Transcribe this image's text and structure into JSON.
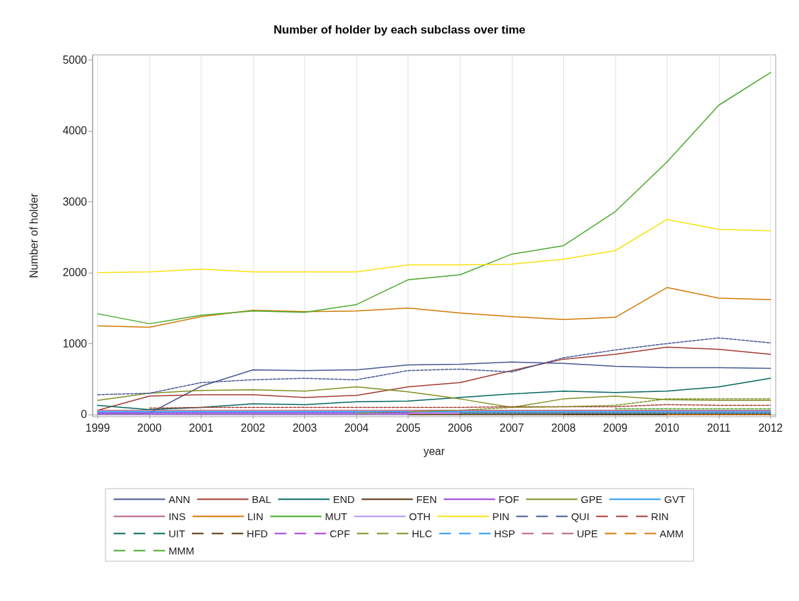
{
  "chart_data": {
    "type": "line",
    "title": "Number of holder by each subclass over time",
    "xlabel": "year",
    "ylabel": "Number of holder",
    "x": [
      1999,
      2000,
      2001,
      2002,
      2003,
      2004,
      2005,
      2006,
      2007,
      2008,
      2009,
      2010,
      2011,
      2012
    ],
    "xlim": [
      1998.9,
      2012.1
    ],
    "xticks": [
      1999,
      2000,
      2001,
      2002,
      2003,
      2004,
      2005,
      2006,
      2007,
      2008,
      2009,
      2010,
      2011,
      2012
    ],
    "ylim": [
      -30,
      5070
    ],
    "yticks": [
      0,
      1000,
      2000,
      3000,
      4000,
      5000
    ],
    "grid": "x",
    "legend": "bottom",
    "marker": "none",
    "series": [
      {
        "name": "ANN",
        "color": "#445694",
        "line_style": "solid",
        "values": [
          20,
          20,
          400,
          630,
          620,
          630,
          700,
          710,
          740,
          720,
          680,
          660,
          660,
          650
        ]
      },
      {
        "name": "BAL",
        "color": "#a23a2e",
        "line_style": "solid",
        "values": [
          60,
          260,
          280,
          280,
          240,
          270,
          390,
          450,
          620,
          780,
          850,
          950,
          920,
          850
        ]
      },
      {
        "name": "END",
        "color": "#01665e",
        "line_style": "solid",
        "values": [
          130,
          70,
          100,
          150,
          140,
          180,
          190,
          240,
          290,
          330,
          310,
          330,
          390,
          510
        ]
      },
      {
        "name": "FEN",
        "color": "#543005",
        "line_style": "solid",
        "values": [
          0,
          0,
          0,
          0,
          0,
          0,
          0,
          0,
          0,
          0,
          0,
          0,
          0,
          0
        ]
      },
      {
        "name": "FOF",
        "color": "#9d3cdb",
        "line_style": "solid",
        "values": [
          20,
          20,
          20,
          20,
          20,
          20,
          20,
          20,
          20,
          20,
          20,
          20,
          20,
          20
        ]
      },
      {
        "name": "GPE",
        "color": "#7f8e1f",
        "line_style": "solid",
        "values": [
          200,
          300,
          340,
          350,
          330,
          390,
          320,
          220,
          100,
          220,
          260,
          210,
          200,
          200
        ]
      },
      {
        "name": "GVT",
        "color": "#2597fa",
        "line_style": "solid",
        "values": [
          40,
          40,
          40,
          40,
          40,
          40,
          40,
          40,
          40,
          40,
          40,
          40,
          40,
          40
        ]
      },
      {
        "name": "INS",
        "color": "#b26084",
        "line_style": "solid",
        "values": [
          60,
          60,
          60,
          60,
          60,
          60,
          60,
          60,
          60,
          60,
          60,
          60,
          60,
          60
        ]
      },
      {
        "name": "LIN",
        "color": "#d17800",
        "line_style": "solid",
        "values": [
          1250,
          1230,
          1380,
          1470,
          1450,
          1460,
          1500,
          1430,
          1380,
          1340,
          1370,
          1790,
          1640,
          1620
        ]
      },
      {
        "name": "MUT",
        "color": "#47a82a",
        "line_style": "solid",
        "values": [
          1420,
          1280,
          1400,
          1460,
          1440,
          1550,
          1900,
          1970,
          2260,
          2380,
          2860,
          3560,
          4360,
          4820
        ]
      },
      {
        "name": "OTH",
        "color": "#b38ef3",
        "line_style": "solid",
        "values": [
          0,
          0,
          0,
          0,
          0,
          0,
          0,
          null,
          null,
          null,
          null,
          null,
          null,
          null
        ]
      },
      {
        "name": "PIN",
        "color": "#f9e10c",
        "line_style": "solid",
        "values": [
          2000,
          2010,
          2050,
          2010,
          2010,
          2010,
          2110,
          2110,
          2120,
          2190,
          2310,
          2750,
          2610,
          2590
        ]
      },
      {
        "name": "QUI",
        "color": "#445694",
        "line_style": "dashed",
        "values": [
          280,
          300,
          450,
          490,
          510,
          490,
          620,
          640,
          600,
          800,
          910,
          1000,
          1080,
          1010
        ]
      },
      {
        "name": "RIN",
        "color": "#a23a2e",
        "line_style": "dashed",
        "values": [
          null,
          90,
          100,
          100,
          100,
          100,
          100,
          100,
          110,
          110,
          110,
          140,
          130,
          130
        ]
      },
      {
        "name": "UIT",
        "color": "#01665e",
        "line_style": "dashed",
        "values": [
          null,
          null,
          null,
          null,
          null,
          null,
          null,
          20,
          20,
          20,
          20,
          20,
          20,
          20
        ]
      },
      {
        "name": "HFD",
        "color": "#543005",
        "line_style": "dashed",
        "values": [
          null,
          null,
          null,
          null,
          null,
          null,
          null,
          null,
          null,
          0,
          0,
          0,
          0,
          0
        ]
      },
      {
        "name": "CPF",
        "color": "#9d3cdb",
        "line_style": "dashed",
        "values": [
          20,
          20,
          20,
          20,
          20,
          20,
          20,
          null,
          null,
          null,
          null,
          null,
          null,
          null
        ]
      },
      {
        "name": "HLC",
        "color": "#7f8e1f",
        "line_style": "dashed",
        "values": [
          null,
          null,
          null,
          null,
          null,
          20,
          40,
          60,
          100,
          110,
          130,
          220,
          220,
          220
        ]
      },
      {
        "name": "HSP",
        "color": "#2597fa",
        "line_style": "dashed",
        "values": [
          40,
          40,
          40,
          40,
          40,
          40,
          40,
          null,
          null,
          null,
          null,
          null,
          null,
          null
        ]
      },
      {
        "name": "UPE",
        "color": "#b26084",
        "line_style": "dashed",
        "values": [
          null,
          null,
          null,
          null,
          null,
          null,
          null,
          60,
          60,
          60,
          60,
          60,
          60,
          60
        ]
      },
      {
        "name": "AMM",
        "color": "#d17800",
        "line_style": "dashed",
        "values": [
          null,
          null,
          null,
          null,
          null,
          null,
          null,
          null,
          null,
          null,
          null,
          0,
          0,
          0
        ]
      },
      {
        "name": "MMM",
        "color": "#47a82a",
        "line_style": "dashed",
        "values": [
          null,
          null,
          null,
          null,
          null,
          null,
          null,
          null,
          null,
          null,
          80,
          80,
          80,
          80
        ]
      }
    ]
  }
}
